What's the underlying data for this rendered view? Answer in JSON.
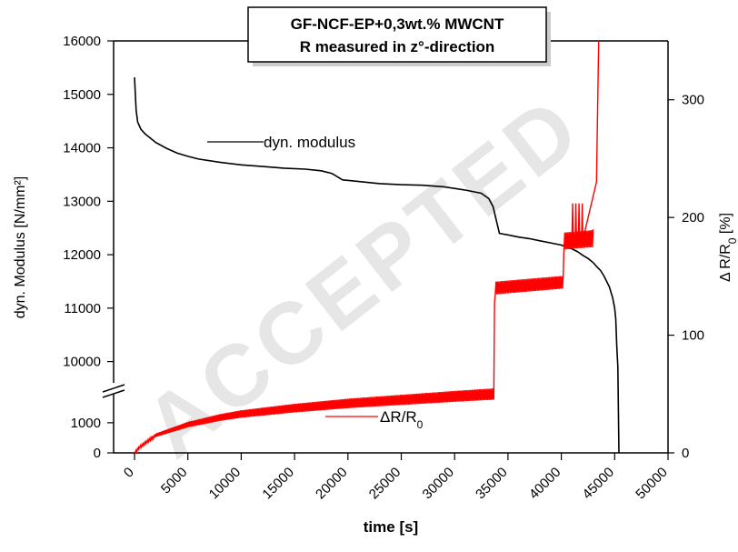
{
  "title": {
    "line1": "GF-NCF-EP+0,3wt.% MWCNT",
    "line2": "R measured in z°-direction"
  },
  "watermark": "ACCEPTED",
  "chart_data": {
    "type": "line",
    "xlabel": "time [s]",
    "ylabel_left": "dyn. Modulus [N/mm²]",
    "ylabel_right_prefix": "Δ R/R",
    "ylabel_right_sub": "0",
    "ylabel_right_suffix": " [%]",
    "x_ticks": [
      "0",
      "5000",
      "10000",
      "15000",
      "20000",
      "25000",
      "30000",
      "35000",
      "40000",
      "45000",
      "50000"
    ],
    "xlim": [
      0,
      50000
    ],
    "left_axis": {
      "broken": true,
      "lower_range": [
        0,
        1600
      ],
      "lower_ticks": [
        "0",
        "1000"
      ],
      "upper_range": [
        9500,
        16000
      ],
      "upper_ticks": [
        "10000",
        "11000",
        "12000",
        "13000",
        "14000",
        "15000",
        "16000"
      ]
    },
    "right_axis": {
      "range": [
        0,
        350
      ],
      "ticks": [
        "0",
        "100",
        "200",
        "300"
      ]
    },
    "series": [
      {
        "name": "dyn. modulus",
        "axis": "left",
        "color": "#000000",
        "x": [
          0,
          150,
          300,
          600,
          1000,
          1500,
          2000,
          3000,
          4000,
          5000,
          6000,
          8000,
          10000,
          12000,
          14000,
          16000,
          17500,
          18500,
          19500,
          21000,
          23000,
          25000,
          27000,
          29000,
          31000,
          32500,
          33200,
          33600,
          33900,
          34200,
          35000,
          36000,
          37000,
          38000,
          39000,
          40000,
          40500,
          41000,
          41500,
          42000,
          42500,
          43000,
          43300,
          43700,
          44000,
          44500,
          44800,
          45000,
          45100,
          45200,
          45300,
          45400
        ],
        "y": [
          15320,
          14700,
          14480,
          14350,
          14260,
          14180,
          14100,
          13990,
          13900,
          13840,
          13790,
          13730,
          13680,
          13650,
          13620,
          13600,
          13570,
          13520,
          13400,
          13370,
          13330,
          13310,
          13300,
          13270,
          13210,
          13150,
          13050,
          12900,
          12650,
          12400,
          12370,
          12330,
          12300,
          12260,
          12220,
          12180,
          12140,
          12110,
          12060,
          11990,
          11930,
          11850,
          11780,
          11700,
          11600,
          11400,
          11200,
          11000,
          10800,
          10300,
          9900,
          0
        ]
      },
      {
        "name": "ΔR/R0",
        "axis": "right",
        "color": "#ff0000",
        "x": [
          0,
          500,
          2000,
          5000,
          8000,
          10000,
          15000,
          20000,
          25000,
          30000,
          33700,
          33750,
          40200,
          40250,
          43000,
          43300,
          43500
        ],
        "y": [
          0,
          5,
          15,
          24,
          30,
          33,
          38,
          42,
          45,
          48,
          50,
          140,
          145,
          180,
          182,
          230,
          350
        ]
      }
    ]
  }
}
